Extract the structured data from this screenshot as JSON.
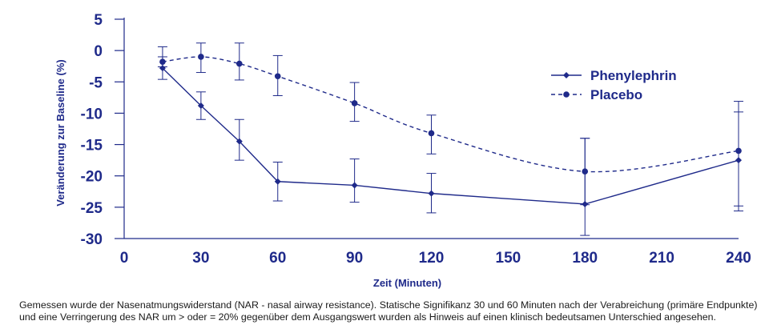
{
  "chart_data": {
    "type": "line",
    "title": "",
    "xlabel": "Zeit (Minuten)",
    "ylabel": "Veränderung zur Baseline (%)",
    "x_ticks": [
      0,
      30,
      60,
      90,
      120,
      150,
      180,
      210,
      240
    ],
    "y_ticks": [
      5,
      0,
      -5,
      -10,
      -15,
      -20,
      -25,
      -30
    ],
    "xlim": [
      0,
      240
    ],
    "ylim": [
      -30,
      5
    ],
    "legend_position": "right",
    "color": "#1f2a8a",
    "series": [
      {
        "name": "Phenylephrin",
        "line_style": "solid",
        "marker": "diamond",
        "x": [
          15,
          30,
          45,
          60,
          90,
          120,
          180,
          240
        ],
        "y": [
          -2.8,
          -8.8,
          -14.5,
          -20.9,
          -21.5,
          -22.8,
          -24.5,
          -17.5
        ],
        "err_low": [
          -4.6,
          -11.0,
          -17.5,
          -24.0,
          -24.2,
          -25.9,
          -29.5,
          -24.8
        ],
        "err_high": [
          -1.0,
          -6.6,
          -11.0,
          -17.8,
          -17.3,
          -19.6,
          -14.0,
          -9.8
        ]
      },
      {
        "name": "Placebo",
        "line_style": "dashed",
        "marker": "circle",
        "x": [
          15,
          30,
          45,
          60,
          90,
          120,
          180,
          240
        ],
        "y": [
          -1.8,
          -1.0,
          -2.1,
          -4.1,
          -8.4,
          -13.2,
          -19.3,
          -16.0
        ],
        "err_low": [
          -2.6,
          -3.5,
          -4.7,
          -7.2,
          -11.3,
          -16.5,
          -24.6,
          -25.6
        ],
        "err_high": [
          0.6,
          1.2,
          1.2,
          -0.8,
          -5.1,
          -10.3,
          -14.0,
          -8.1
        ]
      }
    ]
  },
  "caption": {
    "line1": "Gemessen wurde der Nasenatmungswiderstand (NAR - nasal airway resistance). Statische Signifikanz 30 und 60 Minuten nach der Verabreichung (primäre Endpunkte)",
    "line2": "und eine Verringerung des NAR um > oder = 20% gegenüber dem Ausgangswert wurden als Hinweis auf einen klinisch bedeutsamen Unterschied angesehen."
  }
}
